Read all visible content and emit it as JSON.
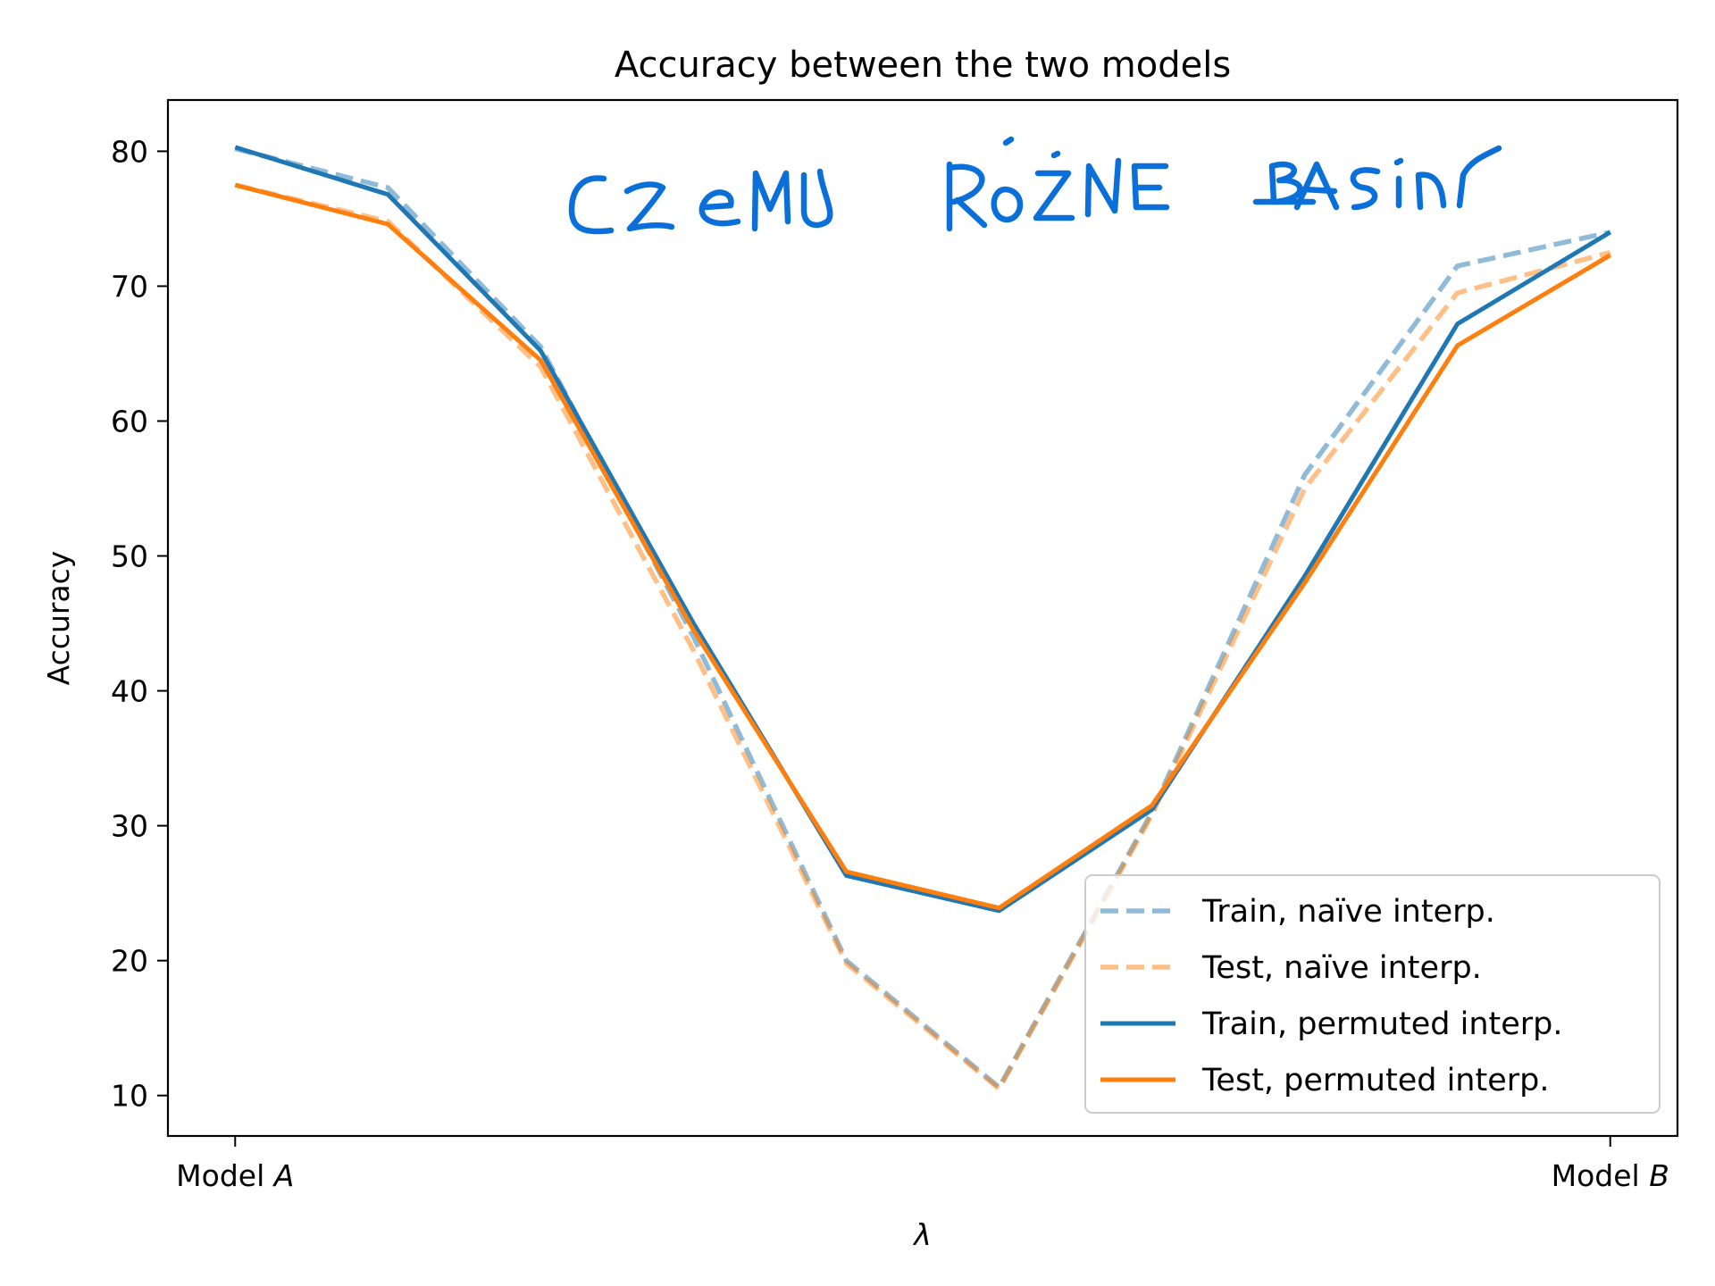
{
  "chart_data": {
    "type": "line",
    "title": "Accuracy between the two models",
    "xlabel": "λ",
    "ylabel": "Accuracy",
    "x": [
      0,
      1,
      2,
      3,
      4,
      5,
      6,
      7,
      8,
      9
    ],
    "xlim": [
      -0.44,
      9.44
    ],
    "ylim": [
      7,
      83.8
    ],
    "xticks": [
      {
        "value": 0,
        "prefix": "Model ",
        "italic": "A"
      },
      {
        "value": 9,
        "prefix": "Model ",
        "italic": "B"
      }
    ],
    "yticks": [
      10,
      20,
      30,
      40,
      50,
      60,
      70,
      80
    ],
    "grid": false,
    "legend_position": "lower-right",
    "series": [
      {
        "name": "Train, naïve interp.",
        "color": "#1f77b4",
        "style": "dashed",
        "opacity": 0.5,
        "values": [
          80.2,
          77.3,
          65.5,
          44.0,
          20.0,
          10.6,
          31.0,
          56.0,
          71.5,
          74.0
        ]
      },
      {
        "name": "Test, naïve interp.",
        "color": "#ff7f0e",
        "style": "dashed",
        "opacity": 0.5,
        "values": [
          77.5,
          74.8,
          64.0,
          43.0,
          19.8,
          10.5,
          30.8,
          55.0,
          69.5,
          72.5
        ]
      },
      {
        "name": "Train, permuted interp.",
        "color": "#1f77b4",
        "style": "solid",
        "opacity": 1,
        "values": [
          80.3,
          76.8,
          65.2,
          45.0,
          26.3,
          23.7,
          31.2,
          48.5,
          67.2,
          74.0
        ]
      },
      {
        "name": "Test, permuted interp.",
        "color": "#ff7f0e",
        "style": "solid",
        "opacity": 1,
        "values": [
          77.5,
          74.6,
          64.5,
          44.5,
          26.6,
          23.9,
          31.5,
          48.0,
          65.6,
          72.3
        ]
      }
    ],
    "annotation": {
      "text": "CZEMU RÓŻNE BASINY",
      "color": "#0a6fd8",
      "style": "handwritten"
    }
  }
}
